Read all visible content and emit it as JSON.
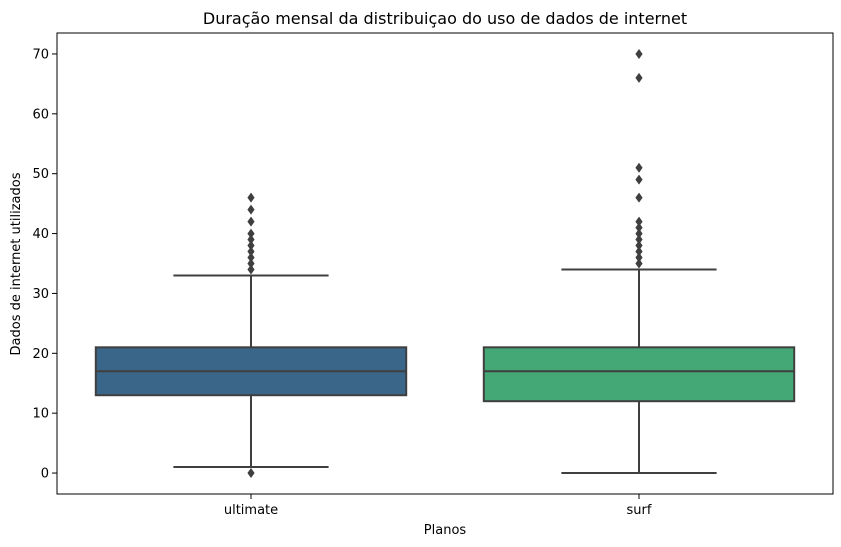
{
  "chart_data": {
    "type": "box",
    "title": "Duração mensal da distribuiçao do uso de dados de internet",
    "xlabel": "Planos",
    "ylabel": "Dados de internet utilizados",
    "ylim": [
      -3.5,
      73.5
    ],
    "yticks": [
      0,
      10,
      20,
      30,
      40,
      50,
      60,
      70
    ],
    "grid": false,
    "categories": [
      "ultimate",
      "surf"
    ],
    "boxes": [
      {
        "category": "ultimate",
        "whisker_low": 1,
        "q1": 13,
        "median": 17,
        "q3": 21,
        "whisker_high": 33,
        "outliers": [
          0,
          34,
          35,
          36,
          37,
          38,
          39,
          40,
          42,
          44,
          46
        ],
        "color": "#3a6689"
      },
      {
        "category": "surf",
        "whisker_low": 0,
        "q1": 12,
        "median": 17,
        "q3": 21,
        "whisker_high": 34,
        "outliers": [
          35,
          36,
          37,
          38,
          39,
          40,
          41,
          42,
          46,
          49,
          51,
          66,
          70
        ],
        "color": "#44a876"
      }
    ]
  }
}
